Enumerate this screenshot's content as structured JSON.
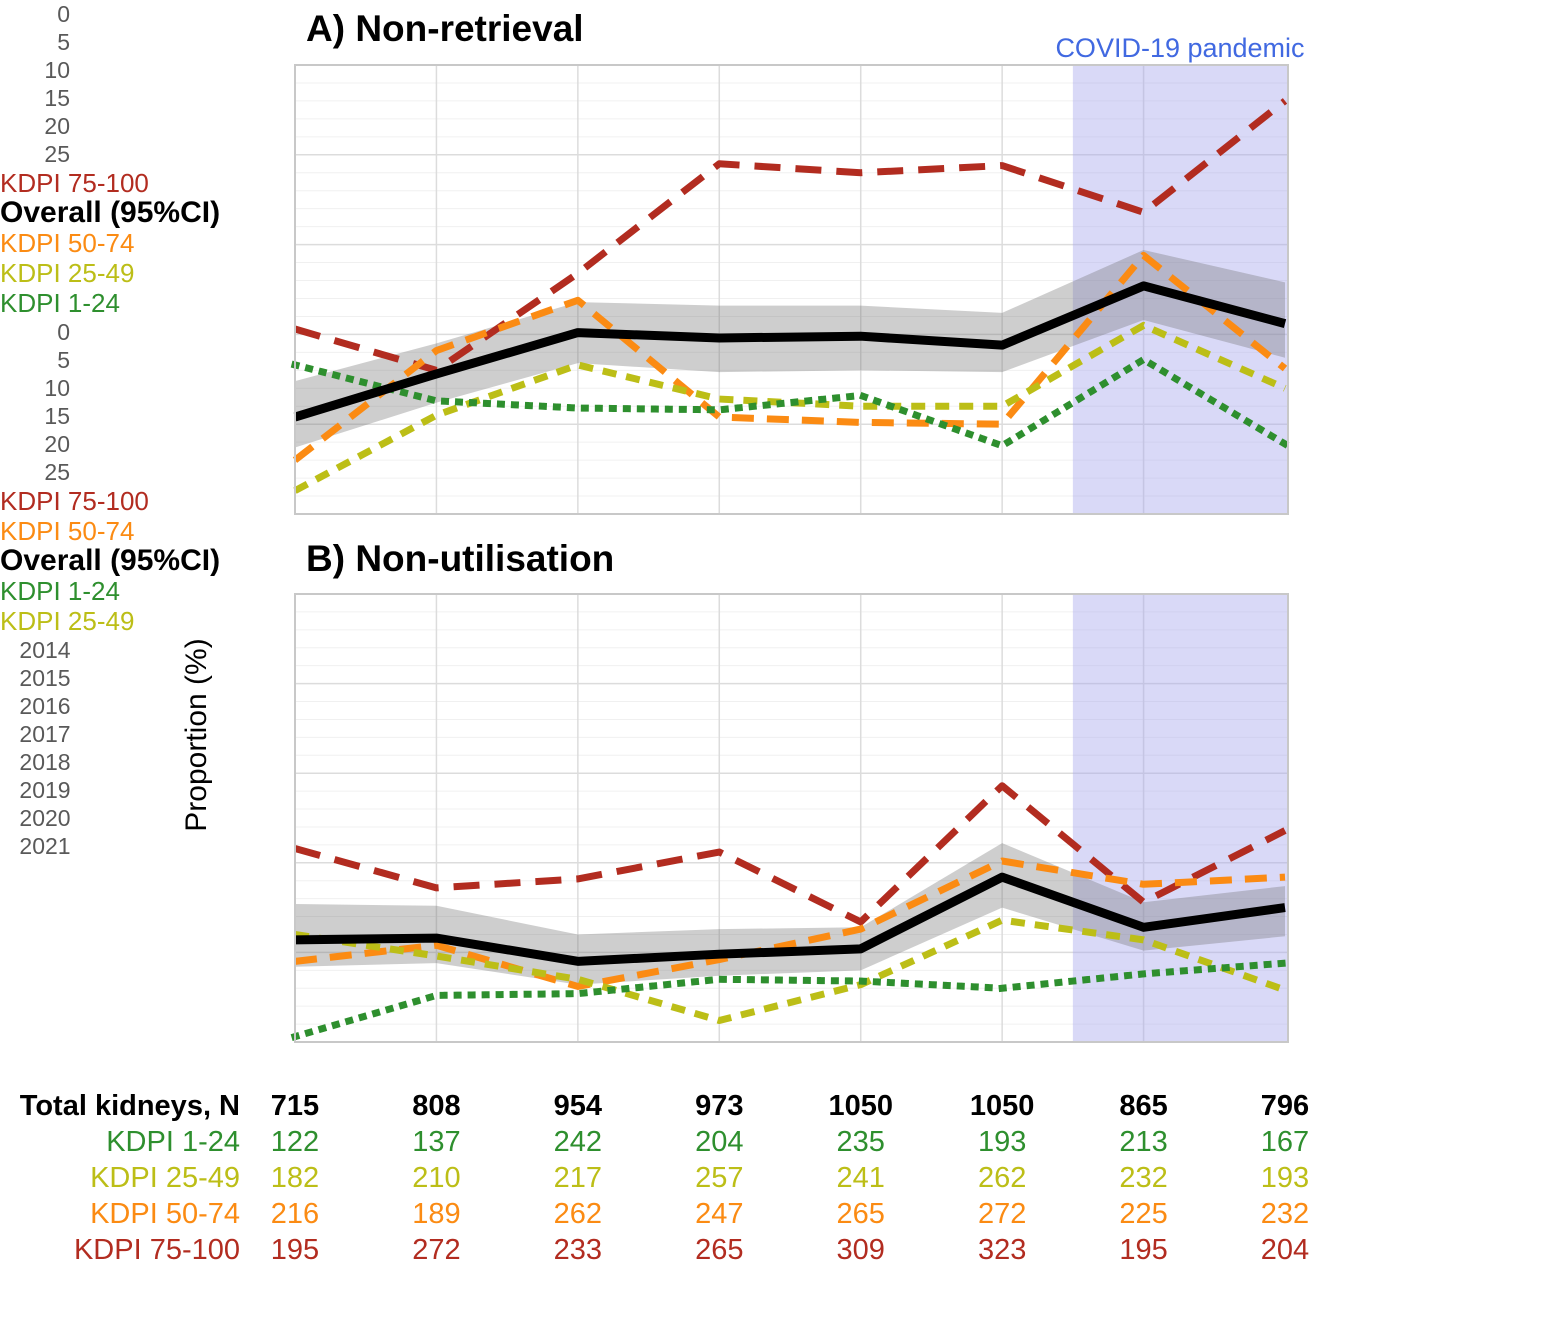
{
  "figure": {
    "y_axis_label": "Proportion (%)",
    "covid_label": "COVID-19 pandemic",
    "colors": {
      "overall": "#000000",
      "kdpi_1_24": "#2E8F2E",
      "kdpi_25_49": "#BCBE17",
      "kdpi_50_74": "#FB8B13",
      "kdpi_75_100": "#B22C20",
      "covid_band": "rgba(164,164,235,0.42)",
      "covid_label_text": "#4169E1",
      "ci_band": "rgba(115,115,115,0.35)",
      "grid_major": "#DCDCDC",
      "grid_minor": "#F0F0F0",
      "axis_text": "#595959",
      "panel_border": "#C8C8C8"
    }
  },
  "chart_data": [
    {
      "type": "line",
      "title": "A) Non-retrieval",
      "ylabel": "Proportion (%)",
      "xlabel": "",
      "ylim": [
        0,
        25
      ],
      "yticks": [
        0,
        5,
        10,
        15,
        20,
        25
      ],
      "x": [
        2014,
        2015,
        2016,
        2017,
        2018,
        2019,
        2020,
        2021
      ],
      "grid": true,
      "legend_position": "right-line-end-labels",
      "covid_region": {
        "x_start": 2019.5,
        "x_end": 2021,
        "label": "COVID-19 pandemic"
      },
      "series": [
        {
          "name": "KDPI 75-100",
          "color_key": "kdpi_75_100",
          "style": "dashed-long",
          "values": [
            10.3,
            8.0,
            13.4,
            19.5,
            19.0,
            19.4,
            16.8,
            23.0
          ]
        },
        {
          "name": "KDPI 50-74",
          "color_key": "kdpi_50_74",
          "style": "dashed",
          "values": [
            3.0,
            9.1,
            11.9,
            5.4,
            5.1,
            5.0,
            14.4,
            8.1
          ]
        },
        {
          "name": "KDPI 25-49",
          "color_key": "kdpi_25_49",
          "style": "dashed-short",
          "values": [
            1.3,
            5.5,
            8.3,
            6.4,
            6.0,
            6.0,
            10.5,
            7.0
          ]
        },
        {
          "name": "KDPI 1-24",
          "color_key": "kdpi_1_24",
          "style": "dotted",
          "values": [
            8.3,
            6.3,
            5.9,
            5.8,
            6.6,
            3.8,
            8.6,
            3.9
          ]
        },
        {
          "name": "Overall (95%CI)",
          "color_key": "overall",
          "style": "solid",
          "bold_label": true,
          "values": [
            5.4,
            7.8,
            10.1,
            9.8,
            9.9,
            9.4,
            12.7,
            10.6
          ],
          "ci_lower": [
            3.7,
            6.2,
            8.4,
            7.9,
            8.0,
            7.9,
            10.8,
            8.7
          ],
          "ci_upper": [
            7.4,
            9.5,
            11.8,
            11.6,
            11.6,
            11.2,
            14.7,
            12.9
          ]
        }
      ]
    },
    {
      "type": "line",
      "title": "B) Non-utilisation",
      "ylabel": "Proportion (%)",
      "xlabel": "",
      "ylim": [
        0,
        25
      ],
      "yticks": [
        0,
        5,
        10,
        15,
        20,
        25
      ],
      "x": [
        2014,
        2015,
        2016,
        2017,
        2018,
        2019,
        2020,
        2021
      ],
      "grid": true,
      "legend_position": "right-line-end-labels",
      "covid_region": {
        "x_start": 2019.5,
        "x_end": 2021,
        "label": "COVID-19 pandemic"
      },
      "series": [
        {
          "name": "KDPI 75-100",
          "color_key": "kdpi_75_100",
          "style": "dashed-long",
          "values": [
            10.8,
            8.6,
            9.1,
            10.6,
            6.7,
            14.3,
            7.8,
            11.8
          ]
        },
        {
          "name": "KDPI 50-74",
          "color_key": "kdpi_50_74",
          "style": "dashed",
          "values": [
            4.5,
            5.4,
            3.1,
            4.6,
            6.3,
            10.1,
            8.8,
            9.2
          ]
        },
        {
          "name": "KDPI 25-49",
          "color_key": "kdpi_25_49",
          "style": "dashed-short",
          "values": [
            6.0,
            4.8,
            3.5,
            1.2,
            3.2,
            6.8,
            5.7,
            2.9
          ]
        },
        {
          "name": "KDPI 1-24",
          "color_key": "kdpi_1_24",
          "style": "dotted",
          "values": [
            0.3,
            2.6,
            2.7,
            3.5,
            3.4,
            3.0,
            3.8,
            4.4
          ]
        },
        {
          "name": "Overall (95%CI)",
          "color_key": "overall",
          "style": "solid",
          "bold_label": true,
          "values": [
            5.7,
            5.8,
            4.5,
            4.9,
            5.2,
            9.2,
            6.4,
            7.5
          ],
          "ci_lower": [
            4.2,
            4.4,
            3.2,
            3.7,
            4.0,
            7.5,
            5.1,
            5.9
          ],
          "ci_upper": [
            7.7,
            7.6,
            6.0,
            6.3,
            6.4,
            11.1,
            7.8,
            8.7
          ]
        }
      ]
    }
  ],
  "table": {
    "columns": [
      2014,
      2015,
      2016,
      2017,
      2018,
      2019,
      2020,
      2021
    ],
    "rows": [
      {
        "label": "Total kidneys, N",
        "color_key": "overall",
        "bold": true,
        "values": [
          715,
          808,
          954,
          973,
          1050,
          1050,
          865,
          796
        ]
      },
      {
        "label": "KDPI 1-24",
        "color_key": "kdpi_1_24",
        "bold": false,
        "values": [
          122,
          137,
          242,
          204,
          235,
          193,
          213,
          167
        ]
      },
      {
        "label": "KDPI 25-49",
        "color_key": "kdpi_25_49",
        "bold": false,
        "values": [
          182,
          210,
          217,
          257,
          241,
          262,
          232,
          193
        ]
      },
      {
        "label": "KDPI 50-74",
        "color_key": "kdpi_50_74",
        "bold": false,
        "values": [
          216,
          189,
          262,
          247,
          265,
          272,
          225,
          232
        ]
      },
      {
        "label": "KDPI 75-100",
        "color_key": "kdpi_75_100",
        "bold": false,
        "values": [
          195,
          272,
          233,
          265,
          309,
          323,
          195,
          204
        ]
      }
    ]
  }
}
